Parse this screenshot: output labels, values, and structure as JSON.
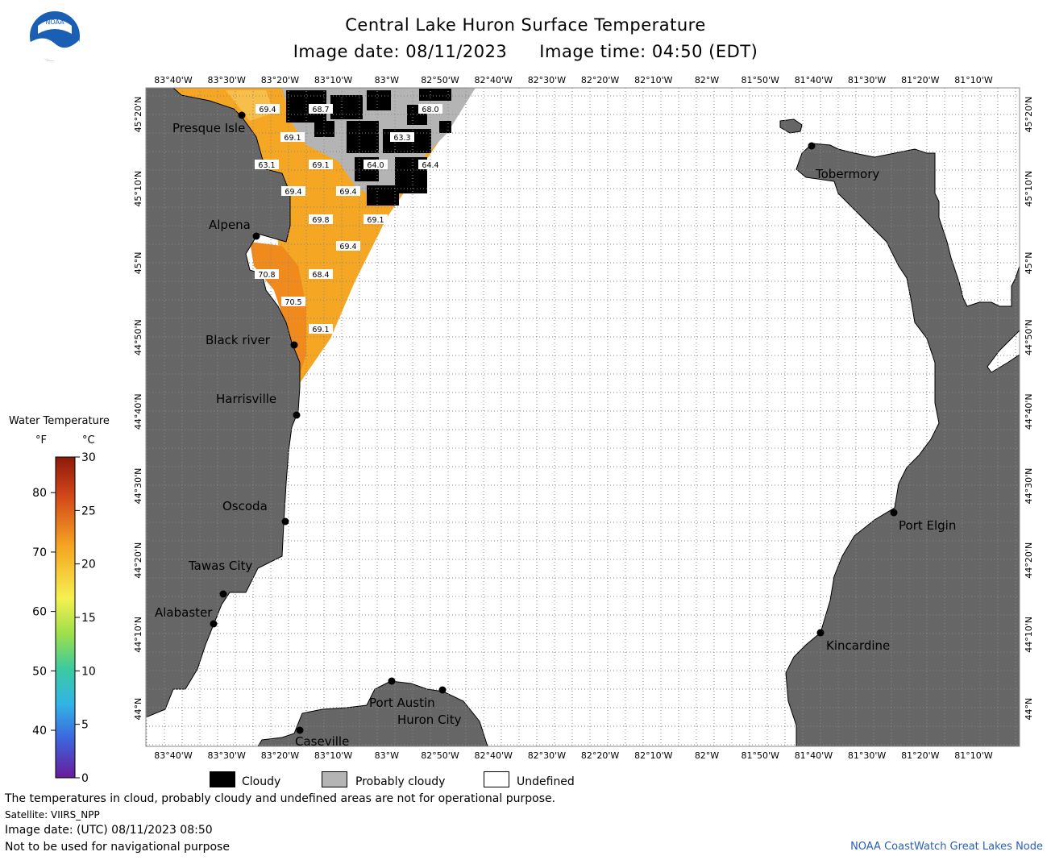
{
  "header": {
    "title": "Central Lake Huron Surface Temperature",
    "image_date": "Image date: 08/11/2023",
    "image_time": "Image time: 04:50 (EDT)",
    "logo_text": "NOAA"
  },
  "axes": {
    "lon_labels": [
      "83°40'W",
      "83°30'W",
      "83°20'W",
      "83°10'W",
      "83°W",
      "82°50'W",
      "82°40'W",
      "82°30'W",
      "82°20'W",
      "82°10'W",
      "82°W",
      "81°50'W",
      "81°40'W",
      "81°30'W",
      "81°20'W",
      "81°10'W"
    ],
    "lat_labels": [
      "45°20'N",
      "45°10'N",
      "45°N",
      "44°50'N",
      "44°40'N",
      "44°30'N",
      "44°20'N",
      "44°10'N",
      "44°N"
    ]
  },
  "places": {
    "presque_isle": "Presque Isle",
    "alpena": "Alpena",
    "black_river": "Black river",
    "harrisville": "Harrisville",
    "oscoda": "Oscoda",
    "tawas_city": "Tawas City",
    "alabaster": "Alabaster",
    "caseville": "Caseville",
    "port_austin": "Port Austin",
    "huron_city": "Huron City",
    "tobermory": "Tobermory",
    "port_elgin": "Port Elgin",
    "kincardine": "Kincardine"
  },
  "temperature_labels": [
    "69.4",
    "68.7",
    "68.0",
    "69.1",
    "63.3",
    "63.1",
    "69.1",
    "64.0",
    "64.4",
    "69.4",
    "69.4",
    "69.8",
    "69.1",
    "69.4",
    "70.8",
    "68.4",
    "70.5",
    "69.1"
  ],
  "colorbar": {
    "title": "Water Temperature",
    "unit_f": "°F",
    "unit_c": "°C",
    "f_ticks": [
      "80",
      "70",
      "60",
      "50",
      "40"
    ],
    "c_ticks": [
      "30",
      "25",
      "20",
      "15",
      "10",
      "5",
      "0"
    ]
  },
  "key": {
    "cloudy": "Cloudy",
    "probably_cloudy": "Probably cloudy",
    "undefined": "Undefined"
  },
  "footer": {
    "line1": "The temperatures in cloud, probably cloudy and undefined areas are not for operational purpose.",
    "line2": "Satellite: VIIRS_NPP",
    "line3": "Image date: (UTC) 08/11/2023  08:50",
    "line4": "Not to be used for navigational purpose",
    "credit": "NOAA CoastWatch Great Lakes Node"
  },
  "colors": {
    "land": "#666666",
    "water_warm": "#f5a623",
    "water_hot": "#f08a1c",
    "cloud": "#000000",
    "prob_cloud": "#b4b4b4",
    "undefined": "#ffffff",
    "credit": "#2a60b8"
  }
}
